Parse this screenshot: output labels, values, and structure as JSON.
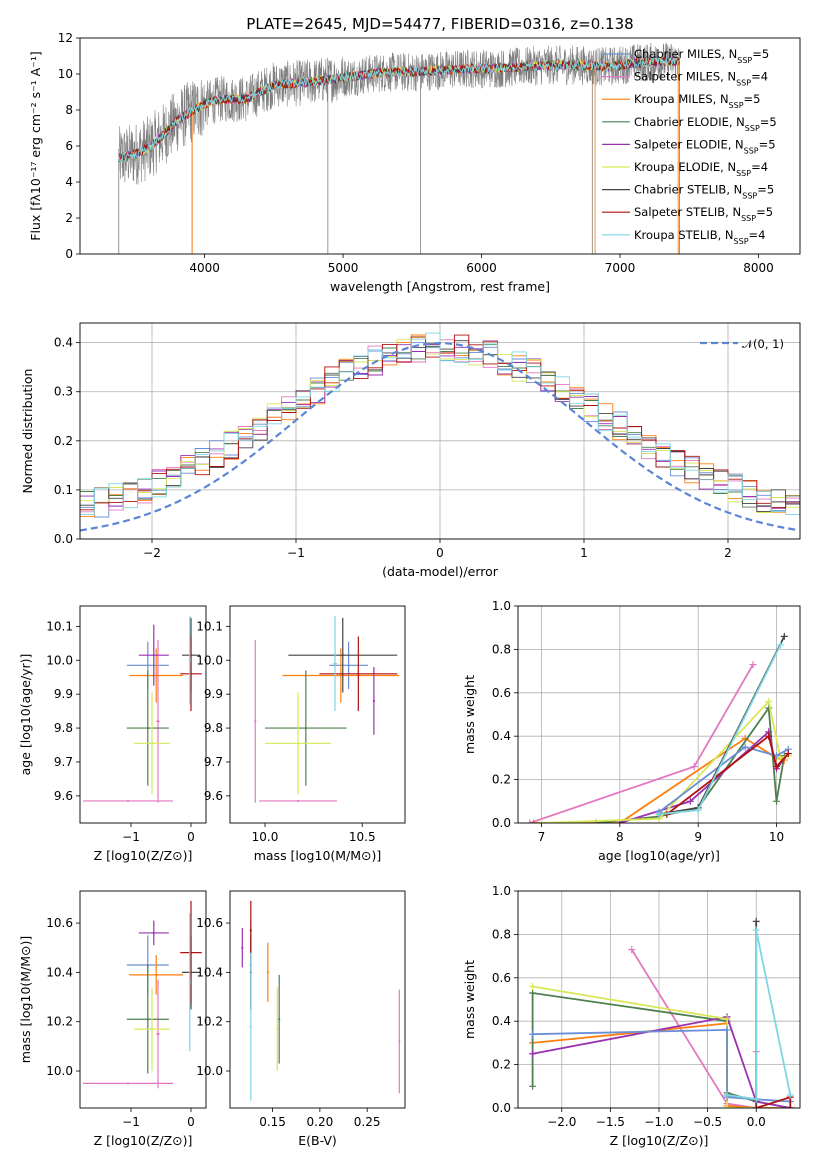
{
  "figure": {
    "title": "PLATE=2645, MJD=54477, FIBERID=0316, z=0.138"
  },
  "chart_data": [
    {
      "id": "spectrum",
      "type": "line",
      "xlabel": "wavelength [Angstrom, rest frame]",
      "ylabel": "Flux [fλ10⁻¹⁷ erg cm⁻² s⁻¹ A⁻¹]",
      "xlim": [
        3100,
        8300
      ],
      "ylim": [
        0,
        12
      ],
      "xticks": [
        4000,
        5000,
        6000,
        7000,
        8000
      ],
      "yticks": [
        0,
        2,
        4,
        6,
        8,
        10,
        12
      ],
      "grid": false,
      "legend": "top-right",
      "legend_entries": [
        {
          "label": "Chabrier MILES, N",
          "sub": "SSP",
          "tail": "=5",
          "color": "#6b8fd6"
        },
        {
          "label": "Salpeter MILES, N",
          "sub": "SSP",
          "tail": "=4",
          "color": "#e377c2"
        },
        {
          "label": "Kroupa MILES, N",
          "sub": "SSP",
          "tail": "=5",
          "color": "#ff7f0e"
        },
        {
          "label": "Chabrier ELODIE, N",
          "sub": "SSP",
          "tail": "=5",
          "color": "#4f7f4f"
        },
        {
          "label": "Salpeter ELODIE, N",
          "sub": "SSP",
          "tail": "=5",
          "color": "#9b30b0"
        },
        {
          "label": "Kroupa ELODIE, N",
          "sub": "SSP",
          "tail": "=4",
          "color": "#d8e854"
        },
        {
          "label": "Chabrier STELIB, N",
          "sub": "SSP",
          "tail": "=5",
          "color": "#444444"
        },
        {
          "label": "Salpeter STELIB, N",
          "sub": "SSP",
          "tail": "=5",
          "color": "#b01010"
        },
        {
          "label": "Kroupa STELIB, N",
          "sub": "SSP",
          "tail": "=4",
          "color": "#7fd6e0"
        }
      ],
      "anchors": [
        [
          3380,
          5.3
        ],
        [
          3480,
          5.5
        ],
        [
          3600,
          5.9
        ],
        [
          3700,
          6.6
        ],
        [
          3800,
          7.4
        ],
        [
          3900,
          7.9
        ],
        [
          4000,
          8.3
        ],
        [
          4100,
          8.6
        ],
        [
          4300,
          8.6
        ],
        [
          4500,
          9.4
        ],
        [
          4700,
          9.5
        ],
        [
          4900,
          9.7
        ],
        [
          5100,
          9.9
        ],
        [
          5300,
          10.1
        ],
        [
          5500,
          10.1
        ],
        [
          5700,
          10.2
        ],
        [
          5900,
          10.3
        ],
        [
          6100,
          10.3
        ],
        [
          6300,
          10.4
        ],
        [
          6500,
          10.5
        ],
        [
          6700,
          10.5
        ],
        [
          6900,
          10.4
        ],
        [
          7100,
          10.6
        ],
        [
          7300,
          10.7
        ],
        [
          7400,
          10.7
        ]
      ],
      "data_range": [
        3380,
        7430
      ]
    },
    {
      "id": "residuals",
      "type": "line",
      "xlabel": "(data-model)/error",
      "ylabel": "Normed distribution",
      "xlim": [
        -2.5,
        2.5
      ],
      "ylim": [
        0,
        0.44
      ],
      "xticks": [
        -2,
        -1,
        0,
        1,
        2
      ],
      "yticks": [
        0.0,
        0.1,
        0.2,
        0.3,
        0.4
      ],
      "grid": true,
      "legend": "top-right",
      "legend_label": "𝒩(0, 1)",
      "reference_curve": {
        "mu": 0,
        "sigma": 1
      }
    },
    {
      "id": "age-vs-Z",
      "type": "scatter",
      "xlabel": "Z [log10(Z/Z⊙)]",
      "ylabel": "age  [log10(age/yr)]",
      "xlim": [
        -1.85,
        0.25
      ],
      "ylim": [
        9.52,
        10.16
      ],
      "xticks": [
        -1,
        0
      ],
      "yticks": [
        9.6,
        9.7,
        9.8,
        9.9,
        10.0,
        10.1
      ],
      "points": [
        {
          "x": -0.72,
          "xerr": 0.35,
          "y": 9.985,
          "yerr": 0.07,
          "color": "#6b8fd6"
        },
        {
          "x": -1.05,
          "xerr": 0.75,
          "y": 9.585,
          "yerr": 0.0,
          "color": "#e377c2"
        },
        {
          "x": -0.55,
          "xerr": 0.03,
          "y": 9.82,
          "yerr": 0.24,
          "color": "#e377c2"
        },
        {
          "x": -0.58,
          "xerr": 0.45,
          "y": 9.955,
          "yerr": 0.08,
          "color": "#ff7f0e"
        },
        {
          "x": -0.72,
          "xerr": 0.35,
          "y": 9.8,
          "yerr": 0.17,
          "color": "#4f7f4f"
        },
        {
          "x": -0.62,
          "xerr": 0.25,
          "y": 10.015,
          "yerr": 0.09,
          "color": "#9b30b0"
        },
        {
          "x": -0.65,
          "xerr": 0.3,
          "y": 9.755,
          "yerr": 0.15,
          "color": "#d8e854"
        },
        {
          "x": 0.0,
          "xerr": 0.15,
          "y": 10.015,
          "yerr": 0.11,
          "color": "#444444"
        },
        {
          "x": 0.0,
          "xerr": 0.18,
          "y": 9.96,
          "yerr": 0.11,
          "color": "#b01010"
        },
        {
          "x": -0.02,
          "xerr": 0.02,
          "y": 10.0,
          "yerr": 0.13,
          "color": "#7fd6e0"
        }
      ]
    },
    {
      "id": "age-vs-mass",
      "type": "scatter",
      "xlabel": "mass [log10(M/M⊙)]",
      "ylabel": "",
      "xlim": [
        9.82,
        10.72
      ],
      "ylim": [
        9.52,
        10.16
      ],
      "xticks": [
        10.0,
        10.5
      ],
      "yticks": [
        9.6,
        9.7,
        9.8,
        9.9,
        10.0,
        10.1
      ],
      "points": [
        {
          "x": 10.43,
          "xerr": 0.1,
          "y": 9.985,
          "yerr": 0.07,
          "color": "#6b8fd6"
        },
        {
          "x": 10.17,
          "xerr": 0.2,
          "y": 9.585,
          "yerr": 0.0,
          "color": "#e377c2"
        },
        {
          "x": 9.95,
          "xerr": 0.0,
          "y": 9.82,
          "yerr": 0.24,
          "color": "#e377c2"
        },
        {
          "x": 10.39,
          "xerr": 0.3,
          "y": 9.955,
          "yerr": 0.08,
          "color": "#ff7f0e"
        },
        {
          "x": 10.21,
          "xerr": 0.21,
          "y": 9.8,
          "yerr": 0.17,
          "color": "#4f7f4f"
        },
        {
          "x": 10.56,
          "xerr": 0.0,
          "y": 9.88,
          "yerr": 0.1,
          "color": "#9b30b0"
        },
        {
          "x": 10.17,
          "xerr": 0.17,
          "y": 9.755,
          "yerr": 0.15,
          "color": "#d8e854"
        },
        {
          "x": 10.4,
          "xerr": 0.28,
          "y": 10.015,
          "yerr": 0.11,
          "color": "#444444"
        },
        {
          "x": 10.48,
          "xerr": 0.2,
          "y": 9.96,
          "yerr": 0.11,
          "color": "#b01010"
        },
        {
          "x": 10.36,
          "xerr": 0.01,
          "y": 9.99,
          "yerr": 0.14,
          "color": "#7fd6e0"
        }
      ]
    },
    {
      "id": "weight-vs-age",
      "type": "line",
      "xlabel": "age  [log10(age/yr)]",
      "ylabel": "mass weight",
      "xlim": [
        6.7,
        10.3
      ],
      "ylim": [
        0.0,
        1.0
      ],
      "xticks": [
        7,
        8,
        9,
        10
      ],
      "yticks": [
        0.0,
        0.2,
        0.4,
        0.6,
        0.8,
        1.0
      ],
      "grid": true,
      "series": [
        {
          "color": "#e377c2",
          "points": [
            [
              6.85,
              0.0
            ],
            [
              8.95,
              0.26
            ],
            [
              9.7,
              0.73
            ]
          ]
        },
        {
          "color": "#ff7f0e",
          "points": [
            [
              6.9,
              0.0
            ],
            [
              8.0,
              0.0
            ],
            [
              9.6,
              0.39
            ],
            [
              10.0,
              0.3
            ],
            [
              10.1,
              0.29
            ]
          ]
        },
        {
          "color": "#4f7f4f",
          "points": [
            [
              7.7,
              0.0
            ],
            [
              8.5,
              0.03
            ],
            [
              9.0,
              0.07
            ],
            [
              9.9,
              0.53
            ],
            [
              10.0,
              0.1
            ],
            [
              10.1,
              0.31
            ]
          ]
        },
        {
          "color": "#9b30b0",
          "points": [
            [
              8.0,
              0.0
            ],
            [
              8.9,
              0.1
            ],
            [
              9.9,
              0.42
            ],
            [
              10.0,
              0.25
            ],
            [
              10.15,
              0.32
            ]
          ]
        },
        {
          "color": "#d8e854",
          "points": [
            [
              7.0,
              0.0
            ],
            [
              8.5,
              0.02
            ],
            [
              9.9,
              0.56
            ],
            [
              10.05,
              0.3
            ],
            [
              10.15,
              0.31
            ]
          ]
        },
        {
          "color": "#6b8fd6",
          "points": [
            [
              8.5,
              0.05
            ],
            [
              9.6,
              0.35
            ],
            [
              10.0,
              0.31
            ],
            [
              10.15,
              0.34
            ]
          ]
        },
        {
          "color": "#444444",
          "points": [
            [
              8.5,
              0.04
            ],
            [
              9.0,
              0.07
            ],
            [
              10.1,
              0.86
            ]
          ]
        },
        {
          "color": "#b01010",
          "points": [
            [
              8.6,
              0.04
            ],
            [
              9.9,
              0.4
            ],
            [
              10.0,
              0.26
            ],
            [
              10.15,
              0.32
            ]
          ]
        },
        {
          "color": "#7fd6e0",
          "points": [
            [
              8.5,
              0.04
            ],
            [
              9.0,
              0.06
            ],
            [
              10.05,
              0.82
            ]
          ]
        }
      ]
    },
    {
      "id": "mass-vs-Z",
      "type": "scatter",
      "xlabel": "Z [log10(Z/Z⊙)]",
      "ylabel": "mass [log10(M/M⊙)]",
      "xlim": [
        -1.85,
        0.25
      ],
      "ylim": [
        9.85,
        10.73
      ],
      "xticks": [
        -1,
        0
      ],
      "yticks": [
        10.0,
        10.2,
        10.4,
        10.6
      ],
      "points": [
        {
          "x": -0.72,
          "xerr": 0.35,
          "y": 10.43,
          "yerr": 0.12,
          "color": "#6b8fd6"
        },
        {
          "x": -1.05,
          "xerr": 0.75,
          "y": 9.95,
          "yerr": 0.0,
          "color": "#e377c2"
        },
        {
          "x": -0.55,
          "xerr": 0.03,
          "y": 10.15,
          "yerr": 0.22,
          "color": "#e377c2"
        },
        {
          "x": -0.58,
          "xerr": 0.45,
          "y": 10.39,
          "yerr": 0.08,
          "color": "#ff7f0e"
        },
        {
          "x": -0.72,
          "xerr": 0.35,
          "y": 10.21,
          "yerr": 0.22,
          "color": "#4f7f4f"
        },
        {
          "x": -0.62,
          "xerr": 0.25,
          "y": 10.56,
          "yerr": 0.05,
          "color": "#9b30b0"
        },
        {
          "x": -0.65,
          "xerr": 0.3,
          "y": 10.17,
          "yerr": 0.17,
          "color": "#d8e854"
        },
        {
          "x": 0.0,
          "xerr": 0.15,
          "y": 10.4,
          "yerr": 0.15,
          "color": "#444444"
        },
        {
          "x": 0.0,
          "xerr": 0.18,
          "y": 10.48,
          "yerr": 0.21,
          "color": "#b01010"
        },
        {
          "x": -0.02,
          "xerr": 0.02,
          "y": 10.36,
          "yerr": 0.28,
          "color": "#7fd6e0"
        }
      ]
    },
    {
      "id": "mass-vs-ebv",
      "type": "scatter",
      "xlabel": "E(B-V)",
      "ylabel": "",
      "xlim": [
        0.105,
        0.29
      ],
      "ylim": [
        9.85,
        10.73
      ],
      "xticks": [
        0.15,
        0.2,
        0.25
      ],
      "yticks": [
        10.0,
        10.2,
        10.4,
        10.6
      ],
      "points": [
        {
          "x": 0.127,
          "xerr": 0,
          "y": 10.43,
          "yerr": 0.18,
          "color": "#6b8fd6"
        },
        {
          "x": 0.284,
          "xerr": 0,
          "y": 10.12,
          "yerr": 0.21,
          "color": "#e377c2"
        },
        {
          "x": 0.145,
          "xerr": 0,
          "y": 10.4,
          "yerr": 0.12,
          "color": "#ff7f0e"
        },
        {
          "x": 0.157,
          "xerr": 0,
          "y": 10.21,
          "yerr": 0.18,
          "color": "#4f7f4f"
        },
        {
          "x": 0.118,
          "xerr": 0,
          "y": 10.5,
          "yerr": 0.08,
          "color": "#9b30b0"
        },
        {
          "x": 0.155,
          "xerr": 0,
          "y": 10.17,
          "yerr": 0.17,
          "color": "#d8e854"
        },
        {
          "x": 0.127,
          "xerr": 0,
          "y": 10.4,
          "yerr": 0.15,
          "color": "#444444"
        },
        {
          "x": 0.127,
          "xerr": 0,
          "y": 10.57,
          "yerr": 0.12,
          "color": "#b01010"
        },
        {
          "x": 0.127,
          "xerr": 0,
          "y": 10.18,
          "yerr": 0.3,
          "color": "#7fd6e0"
        }
      ]
    },
    {
      "id": "weight-vs-Z",
      "type": "line",
      "xlabel": "Z [log10(Z/Z⊙)]",
      "ylabel": "mass weight",
      "xlim": [
        -2.45,
        0.45
      ],
      "ylim": [
        0.0,
        1.0
      ],
      "xticks": [
        -2.0,
        -1.5,
        -1.0,
        -0.5,
        0.0
      ],
      "yticks": [
        0.0,
        0.2,
        0.4,
        0.6,
        0.8,
        1.0
      ],
      "grid": true,
      "series": [
        {
          "color": "#e377c2",
          "points": [
            [
              -1.28,
              0.73
            ],
            [
              -0.3,
              0.02
            ],
            [
              0.0,
              0.0
            ],
            [
              0.0,
              0.26
            ]
          ]
        },
        {
          "color": "#ff7f0e",
          "points": [
            [
              -2.3,
              0.3
            ],
            [
              -0.3,
              0.39
            ],
            [
              -0.3,
              0.01
            ],
            [
              0.0,
              0.0
            ],
            [
              0.35,
              0.0
            ]
          ]
        },
        {
          "color": "#4f7f4f",
          "points": [
            [
              -2.3,
              0.1
            ],
            [
              -2.3,
              0.53
            ],
            [
              -0.3,
              0.4
            ],
            [
              -0.3,
              0.07
            ],
            [
              0.0,
              0.03
            ],
            [
              0.35,
              0.0
            ]
          ]
        },
        {
          "color": "#9b30b0",
          "points": [
            [
              -2.3,
              0.25
            ],
            [
              -0.3,
              0.42
            ],
            [
              0.0,
              0.03
            ],
            [
              0.35,
              0.0
            ]
          ]
        },
        {
          "color": "#d8e854",
          "points": [
            [
              -2.3,
              0.56
            ],
            [
              -0.3,
              0.41
            ],
            [
              -0.3,
              0.0
            ],
            [
              0.0,
              0.0
            ]
          ]
        },
        {
          "color": "#6b8fd6",
          "points": [
            [
              -2.3,
              0.34
            ],
            [
              -0.3,
              0.36
            ],
            [
              -0.3,
              0.05
            ],
            [
              0.0,
              0.04
            ],
            [
              0.35,
              0.03
            ]
          ]
        },
        {
          "color": "#444444",
          "points": [
            [
              -0.3,
              0.06
            ],
            [
              0.0,
              0.04
            ],
            [
              0.0,
              0.86
            ],
            [
              0.0,
              0.0
            ]
          ]
        },
        {
          "color": "#b01010",
          "points": [
            [
              0.0,
              0.0
            ],
            [
              0.35,
              0.05
            ],
            [
              0.35,
              0.0
            ]
          ]
        },
        {
          "color": "#7fd6e0",
          "points": [
            [
              -0.3,
              0.06
            ],
            [
              0.0,
              0.04
            ],
            [
              0.0,
              0.82
            ],
            [
              0.35,
              0.06
            ]
          ]
        }
      ]
    }
  ]
}
